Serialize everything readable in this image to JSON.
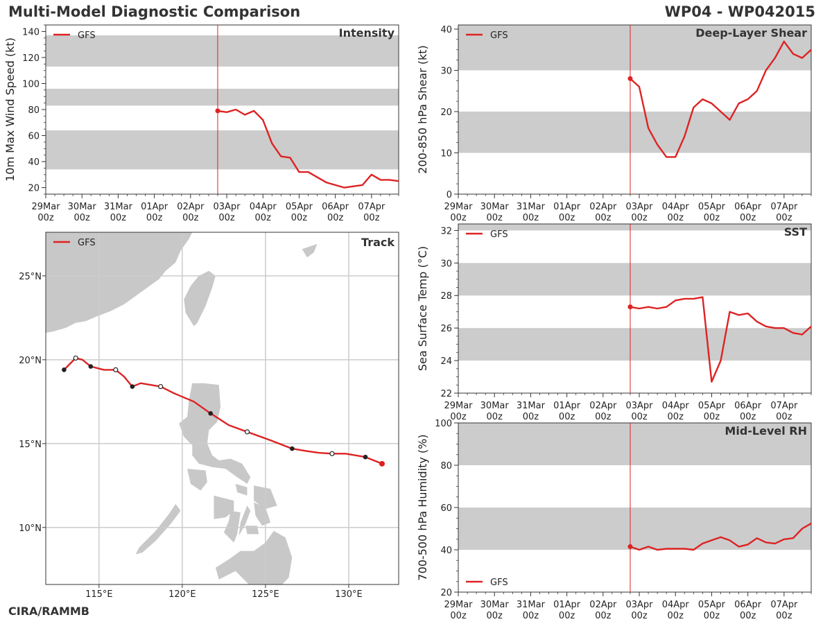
{
  "header": {
    "title": "Multi-Model Diagnostic Comparison",
    "storm_id": "WP04 - WP042015",
    "credit": "CIRA/RAMMB"
  },
  "colors": {
    "model_line": "#dd2222",
    "band": "#cccccc",
    "grid": "#cccccc",
    "land": "#c8c8c8"
  },
  "time_axis": {
    "tick_labels": [
      [
        "29Mar",
        "00z"
      ],
      [
        "30Mar",
        "00z"
      ],
      [
        "31Mar",
        "00z"
      ],
      [
        "01Apr",
        "00z"
      ],
      [
        "02Apr",
        "00z"
      ],
      [
        "03Apr",
        "00z"
      ],
      [
        "04Apr",
        "00z"
      ],
      [
        "05Apr",
        "00z"
      ],
      [
        "06Apr",
        "00z"
      ],
      [
        "07Apr",
        "00z"
      ]
    ],
    "day_range": [
      0,
      9.75
    ],
    "current_time_day": 4.75
  },
  "chart_data": [
    {
      "id": "intensity",
      "type": "line",
      "title": "Intensity",
      "ylabel": "10m Max Wind Speed (kt)",
      "ylim": [
        15,
        145
      ],
      "yticks": [
        20,
        40,
        60,
        80,
        100,
        120,
        140
      ],
      "bands": [
        [
          34,
          64
        ],
        [
          83,
          96
        ],
        [
          113,
          137
        ]
      ],
      "legend": "top-left",
      "series": [
        {
          "name": "GFS",
          "x": [
            4.75,
            5.0,
            5.25,
            5.5,
            5.75,
            6.0,
            6.25,
            6.5,
            6.75,
            7.0,
            7.25,
            7.5,
            7.75,
            8.0,
            8.25,
            8.5,
            8.75,
            9.0,
            9.25,
            9.5,
            9.75
          ],
          "y": [
            79,
            78,
            80,
            76,
            79,
            72,
            54,
            44,
            43,
            32,
            32,
            28,
            24,
            22,
            20,
            21,
            22,
            30,
            26,
            26,
            25
          ]
        }
      ]
    },
    {
      "id": "shear",
      "type": "line",
      "title": "Deep-Layer Shear",
      "ylabel": "200-850 hPa Shear (kt)",
      "ylim": [
        0,
        41
      ],
      "yticks": [
        0,
        10,
        20,
        30,
        40
      ],
      "bands": [
        [
          10,
          20
        ],
        [
          30,
          41
        ]
      ],
      "legend": "top-left",
      "series": [
        {
          "name": "GFS",
          "x": [
            4.75,
            5.0,
            5.25,
            5.5,
            5.75,
            6.0,
            6.25,
            6.5,
            6.75,
            7.0,
            7.25,
            7.5,
            7.75,
            8.0,
            8.25,
            8.5,
            8.75,
            9.0,
            9.25,
            9.5,
            9.75
          ],
          "y": [
            28,
            26,
            16,
            12,
            9,
            9,
            14,
            21,
            23,
            22,
            20,
            18,
            22,
            23,
            25,
            30,
            33,
            37,
            34,
            33,
            35
          ]
        }
      ]
    },
    {
      "id": "sst",
      "type": "line",
      "title": "SST",
      "ylabel": "Sea Surface Temp (°C)",
      "ylim": [
        22,
        32.4
      ],
      "yticks": [
        22,
        24,
        26,
        28,
        30,
        32
      ],
      "bands": [
        [
          24,
          26
        ],
        [
          28,
          30
        ],
        [
          32,
          32.4
        ]
      ],
      "legend": "top-left",
      "series": [
        {
          "name": "GFS",
          "x": [
            4.75,
            5.0,
            5.25,
            5.5,
            5.75,
            6.0,
            6.25,
            6.5,
            6.75,
            7.0,
            7.25,
            7.5,
            7.75,
            8.0,
            8.25,
            8.5,
            8.75,
            9.0,
            9.25,
            9.5,
            9.75
          ],
          "y": [
            27.3,
            27.2,
            27.3,
            27.2,
            27.3,
            27.7,
            27.8,
            27.8,
            27.9,
            22.7,
            24.0,
            27.0,
            26.8,
            26.9,
            26.4,
            26.1,
            26.0,
            26.0,
            25.7,
            25.6,
            26.1
          ]
        }
      ]
    },
    {
      "id": "rh",
      "type": "line",
      "title": "Mid-Level RH",
      "ylabel": "700-500 hPa Humidity (%)",
      "ylim": [
        20,
        100
      ],
      "yticks": [
        20,
        40,
        60,
        80,
        100
      ],
      "bands": [
        [
          40,
          60
        ],
        [
          80,
          100
        ]
      ],
      "legend": "bottom-left",
      "series": [
        {
          "name": "GFS",
          "x": [
            4.75,
            5.0,
            5.25,
            5.5,
            5.75,
            6.0,
            6.25,
            6.5,
            6.75,
            7.0,
            7.25,
            7.5,
            7.75,
            8.0,
            8.25,
            8.5,
            8.75,
            9.0,
            9.25,
            9.5,
            9.75
          ],
          "y": [
            41.5,
            40,
            41.5,
            40,
            40.5,
            40.5,
            40.5,
            40,
            43,
            44.5,
            46,
            44.5,
            41.5,
            42.5,
            45.5,
            43.5,
            43,
            45,
            45.5,
            50,
            52.5
          ]
        }
      ]
    },
    {
      "id": "track",
      "type": "line",
      "title": "Track",
      "xlabel_ticks": [
        "115°E",
        "120°E",
        "125°E",
        "130°E"
      ],
      "xtick_values": [
        115,
        120,
        125,
        130
      ],
      "ylabel_ticks": [
        "10°N",
        "15°N",
        "20°N",
        "25°N"
      ],
      "ytick_values": [
        10,
        15,
        20,
        25
      ],
      "lon_range": [
        111.8,
        133.0
      ],
      "lat_range": [
        6.6,
        27.6
      ],
      "legend": "top-left",
      "series": [
        {
          "name": "GFS",
          "lon": [
            112.9,
            113.6,
            114.0,
            114.5,
            115.3,
            116.0,
            116.5,
            117.0,
            117.5,
            118.7,
            119.5,
            120.7,
            121.7,
            122.8,
            123.9,
            125.3,
            126.6,
            127.5,
            128.2,
            129.0,
            129.8,
            131.0,
            132.0
          ],
          "lat": [
            19.4,
            20.1,
            20.0,
            19.6,
            19.4,
            19.4,
            19.0,
            18.4,
            18.6,
            18.4,
            18.0,
            17.5,
            16.8,
            16.1,
            15.7,
            15.2,
            14.7,
            14.55,
            14.45,
            14.4,
            14.4,
            14.2,
            13.8
          ],
          "markers_closed": [
            [
              112.9,
              19.4
            ],
            [
              114.5,
              19.6
            ],
            [
              117.0,
              18.4
            ],
            [
              121.7,
              16.8
            ],
            [
              126.6,
              14.7
            ],
            [
              131.0,
              14.2
            ]
          ],
          "markers_open": [
            [
              113.6,
              20.1
            ],
            [
              116.0,
              19.4
            ],
            [
              118.7,
              18.4
            ],
            [
              123.9,
              15.7
            ],
            [
              129.0,
              14.4
            ]
          ],
          "end_point": [
            132.0,
            13.8
          ]
        }
      ]
    }
  ]
}
